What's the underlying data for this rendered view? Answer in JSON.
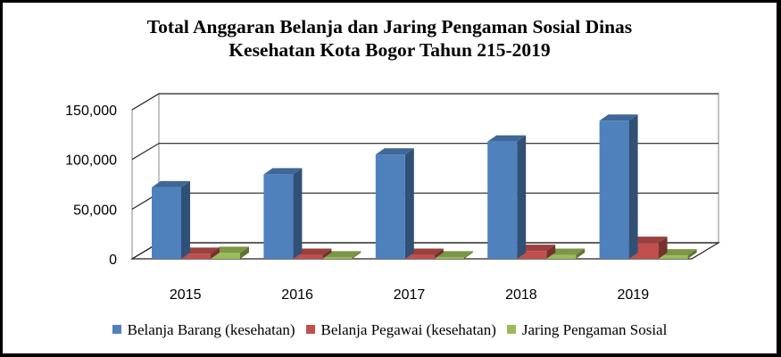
{
  "chart_data": {
    "type": "bar",
    "title_lines": [
      "Total Anggaran Belanja dan Jaring Pengaman Sosial Dinas",
      "Kesehatan Kota Bogor Tahun 215-2019"
    ],
    "categories": [
      "2015",
      "2016",
      "2017",
      "2018",
      "2019"
    ],
    "series": [
      {
        "name": "Belanja Barang (kesehatan)",
        "color": "#4f81bd",
        "values": [
          72000,
          85000,
          105000,
          118000,
          139000
        ]
      },
      {
        "name": "Belanja Pegawai (kesehatan)",
        "color": "#c0504d",
        "values": [
          5000,
          4000,
          4000,
          8000,
          16000
        ]
      },
      {
        "name": "Jaring Pengaman Sosial",
        "color": "#9bbb59",
        "values": [
          6000,
          1500,
          1500,
          4000,
          3500
        ]
      }
    ],
    "y_ticks": [
      "0",
      "50,000",
      "100,000",
      "150,000"
    ],
    "ylim": [
      0,
      150000
    ],
    "grid": true,
    "legend_position": "bottom",
    "style": "3d-clustered-column"
  }
}
